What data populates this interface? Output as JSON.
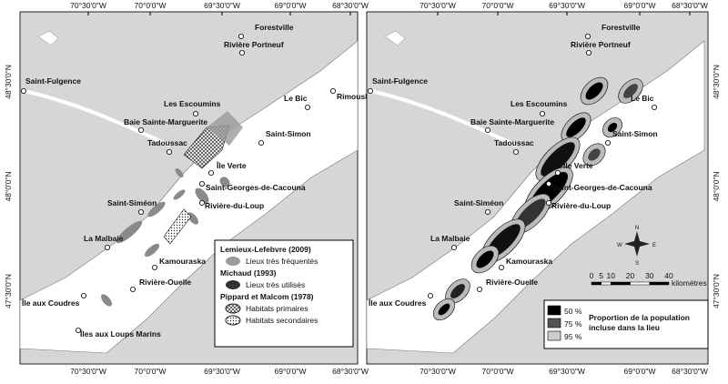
{
  "longitude_labels": [
    "70°30'0\"W",
    "70°0'0\"W",
    "69°30'0\"W",
    "69°0'0\"W",
    "68°30'0\"W"
  ],
  "latitude_labels": [
    "48°30'0\"N",
    "48°0'0\"N",
    "47°30'0\"N"
  ],
  "panels": [
    {
      "places": [
        "Forestville",
        "Rivière Portneuf",
        "Saint-Fulgence",
        "Le Bic",
        "Rimouski",
        "Les Escoumins",
        "Baie Sainte-Marguerite",
        "Tadoussac",
        "Saint-Simon",
        "Île Verte",
        "Saint-Georges-de-Cacouna",
        "Saint-Siméon",
        "Rivière-du-Loup",
        "La Malbaie",
        "Kamouraska",
        "Rivière-Ouelle",
        "Île aux Coudres",
        "Îles aux Loups Marins"
      ],
      "legend": [
        {
          "title": "Lemieux-Lefebvre (2009)",
          "items": [
            "Lieux très fréquentés"
          ]
        },
        {
          "title": "Michaud (1993)",
          "items": [
            "Lieux très utilisés"
          ]
        },
        {
          "title": "Pippard et Malcom  (1978)",
          "items": [
            "Habitats primaires",
            "Habitats secondaires"
          ]
        }
      ]
    },
    {
      "places": [
        "Forestville",
        "Rivière Portneuf",
        "Saint-Fulgence",
        "Le Bic",
        "Les Escoumins",
        "Baie Sainte-Marguerite",
        "Tadoussac",
        "Saint-Simon",
        "Île Verte",
        "Saint-Georges-de-Cacouna",
        "Saint-Siméon",
        "Rivière-du-Loup",
        "La Malbaie",
        "Kamouraska",
        "Rivière-Ouelle",
        "Île aux Coudres"
      ],
      "compass": [
        "N",
        "E",
        "S",
        "W"
      ],
      "scale": {
        "ticks": [
          0,
          5,
          10,
          20,
          30,
          40
        ],
        "unit": "kilomètres"
      },
      "legend": {
        "items": [
          "50 %",
          "75 %",
          "95 %"
        ],
        "caption": [
          "Proportion de la population",
          "incluse dans la lieu"
        ]
      }
    }
  ]
}
